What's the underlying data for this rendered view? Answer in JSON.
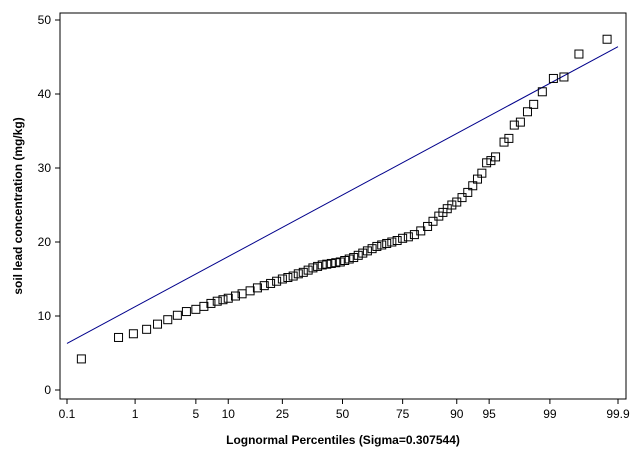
{
  "chart_data": {
    "type": "scatter",
    "title": "",
    "xlabel": "Lognormal Percentiles (Sigma=0.307544)",
    "ylabel": "soil lead concentration (mg/kg)",
    "xlim": [
      0.1,
      99.9
    ],
    "ylim": [
      0,
      50
    ],
    "x_scale": "normal-probability",
    "x_ticks": [
      0.1,
      1,
      5,
      10,
      25,
      50,
      75,
      90,
      95,
      99,
      99.9
    ],
    "x_tick_labels": [
      "0.1",
      "1",
      "5",
      "10",
      "25",
      "50",
      "75",
      "90",
      "95",
      "99",
      "99.9"
    ],
    "y_ticks": [
      0,
      10,
      20,
      30,
      40,
      50
    ],
    "y_tick_labels": [
      "0",
      "10",
      "20",
      "30",
      "40",
      "50"
    ],
    "grid": false,
    "legend": "none",
    "colors": {
      "points": "#000000",
      "fit_line": "#00008b",
      "axis": "#000000"
    },
    "points": [
      [
        0.17,
        4.2
      ],
      [
        0.6,
        7.1
      ],
      [
        0.95,
        7.6
      ],
      [
        1.4,
        8.2
      ],
      [
        1.9,
        8.9
      ],
      [
        2.5,
        9.5
      ],
      [
        3.2,
        10.1
      ],
      [
        4.0,
        10.6
      ],
      [
        5.0,
        10.9
      ],
      [
        6.0,
        11.3
      ],
      [
        7.0,
        11.7
      ],
      [
        8.0,
        12.0
      ],
      [
        9.0,
        12.2
      ],
      [
        10.0,
        12.4
      ],
      [
        11.5,
        12.7
      ],
      [
        13.0,
        13.0
      ],
      [
        15.0,
        13.4
      ],
      [
        17.0,
        13.8
      ],
      [
        19.0,
        14.1
      ],
      [
        21.0,
        14.4
      ],
      [
        23.0,
        14.7
      ],
      [
        25.0,
        15.0
      ],
      [
        27.0,
        15.2
      ],
      [
        29.0,
        15.4
      ],
      [
        31.0,
        15.7
      ],
      [
        33.0,
        15.9
      ],
      [
        35.0,
        16.2
      ],
      [
        37.0,
        16.5
      ],
      [
        39.0,
        16.7
      ],
      [
        41.0,
        16.9
      ],
      [
        43.0,
        17.0
      ],
      [
        45.0,
        17.1
      ],
      [
        47.0,
        17.2
      ],
      [
        49.0,
        17.3
      ],
      [
        51.0,
        17.5
      ],
      [
        53.0,
        17.7
      ],
      [
        55.0,
        17.9
      ],
      [
        57.0,
        18.2
      ],
      [
        59.0,
        18.5
      ],
      [
        61.0,
        18.8
      ],
      [
        63.0,
        19.1
      ],
      [
        65.0,
        19.4
      ],
      [
        67.0,
        19.6
      ],
      [
        69.0,
        19.8
      ],
      [
        71.0,
        20.0
      ],
      [
        73.0,
        20.2
      ],
      [
        75.0,
        20.5
      ],
      [
        77.0,
        20.7
      ],
      [
        79.0,
        21.0
      ],
      [
        81.0,
        21.5
      ],
      [
        83.0,
        22.1
      ],
      [
        84.5,
        22.8
      ],
      [
        86.0,
        23.5
      ],
      [
        87.0,
        24.0
      ],
      [
        88.0,
        24.5
      ],
      [
        89.0,
        25.0
      ],
      [
        90.0,
        25.4
      ],
      [
        91.0,
        26.0
      ],
      [
        92.0,
        26.7
      ],
      [
        92.8,
        27.6
      ],
      [
        93.5,
        28.5
      ],
      [
        94.1,
        29.3
      ],
      [
        94.7,
        30.7
      ],
      [
        95.2,
        31.0
      ],
      [
        95.7,
        31.5
      ],
      [
        96.5,
        33.5
      ],
      [
        96.9,
        34.0
      ],
      [
        97.3,
        35.8
      ],
      [
        97.7,
        36.2
      ],
      [
        98.1,
        37.6
      ],
      [
        98.4,
        38.6
      ],
      [
        98.75,
        40.3
      ],
      [
        99.1,
        42.1
      ],
      [
        99.35,
        42.3
      ],
      [
        99.6,
        45.4
      ],
      [
        99.85,
        47.4
      ]
    ],
    "fit_line": {
      "x_start": 0.1,
      "y_start": 6.3,
      "x_end": 99.9,
      "y_end": 46.4
    }
  }
}
